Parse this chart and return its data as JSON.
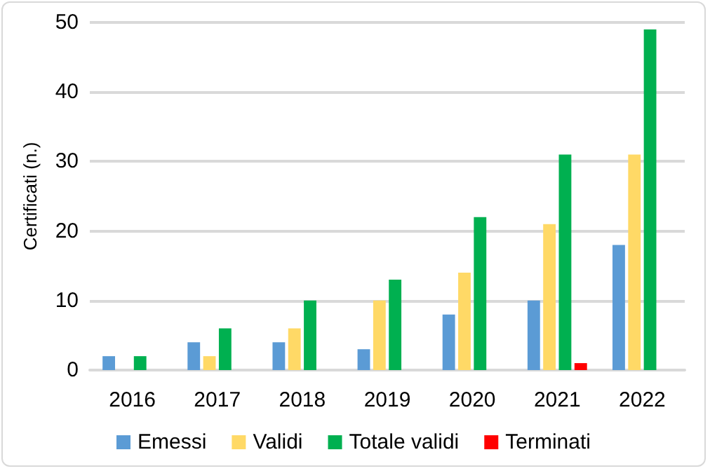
{
  "chart_data": {
    "type": "bar",
    "ylabel": "Certificati (n.)",
    "categories": [
      "2016",
      "2017",
      "2018",
      "2019",
      "2020",
      "2021",
      "2022"
    ],
    "series": [
      {
        "name": "Emessi",
        "color": "#5b9bd5",
        "values": [
          2,
          4,
          4,
          3,
          8,
          10,
          18
        ]
      },
      {
        "name": "Validi",
        "color": "#ffd966",
        "values": [
          0,
          2,
          6,
          10,
          14,
          21,
          31
        ]
      },
      {
        "name": "Totale validi",
        "color": "#00b050",
        "values": [
          2,
          6,
          10,
          13,
          22,
          31,
          49
        ]
      },
      {
        "name": "Terminati",
        "color": "#ff0000",
        "values": [
          0,
          0,
          0,
          0,
          0,
          1,
          0
        ]
      }
    ],
    "ylim": [
      0,
      50
    ],
    "yticks": [
      0,
      10,
      20,
      30,
      40,
      50
    ],
    "grid": "y",
    "legend": "bottom"
  }
}
